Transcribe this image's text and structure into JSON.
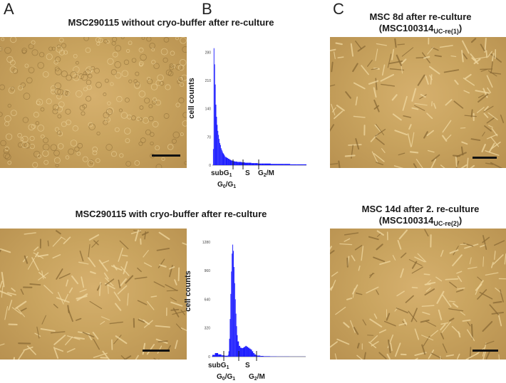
{
  "panels": {
    "a": "A",
    "b": "B",
    "c": "C"
  },
  "captions": {
    "top_left": "MSC290115 without cryo-buffer after re-culture",
    "bottom_left": "MSC290115 with cryo-buffer after re-culture",
    "top_right_line1": "MSC 8d after re-culture",
    "top_right_line2_prefix": "(MSC100314",
    "top_right_line2_sub": "UC-re(1)",
    "top_right_line2_suffix": ")",
    "bottom_right_line1": "MSC 14d after 2. re-culture",
    "bottom_right_line2_prefix": "(MSC100314",
    "bottom_right_line2_sub": "UC-re(2)",
    "bottom_right_line2_suffix": ")"
  },
  "histogram_labels": {
    "ylabel": "cell counts",
    "subg1": "subG",
    "subg1_sub": "1",
    "s": "S",
    "g0g1_a": "G",
    "g0g1_a_sub": "0",
    "g0g1_b": "/G",
    "g0g1_b_sub": "1",
    "g2m_a": "G",
    "g2m_a_sub": "2",
    "g2m_b": "/M"
  },
  "colors": {
    "histogram_fill": "#1a1aff",
    "photo_bg": "#c9a45f",
    "cell_light": "#f0d8a0",
    "cell_dark": "#8a6a35"
  },
  "chart_data": [
    {
      "type": "bar",
      "title": "",
      "ylabel": "cell counts",
      "yticks": [
        "0",
        "70",
        "140",
        "210",
        "280"
      ],
      "ylim": [
        0,
        300
      ],
      "x": [
        1,
        2,
        3,
        4,
        5,
        6,
        7,
        8,
        9,
        10,
        11,
        12,
        13,
        14,
        15,
        16,
        17,
        18,
        19,
        20,
        22,
        24,
        26,
        28,
        30,
        32,
        34,
        36,
        38,
        40,
        45,
        50,
        55,
        60,
        65,
        70,
        75,
        80,
        90,
        100,
        110,
        120,
        130,
        140
      ],
      "values": [
        40,
        290,
        250,
        200,
        150,
        120,
        100,
        85,
        75,
        65,
        55,
        50,
        42,
        38,
        34,
        30,
        28,
        25,
        22,
        20,
        18,
        16,
        14,
        12,
        11,
        10,
        9,
        9,
        8,
        8,
        7,
        6,
        6,
        5,
        5,
        4,
        4,
        4,
        3,
        3,
        3,
        2,
        2,
        2
      ],
      "markers": [
        "subG1",
        "G0/G1",
        "S",
        "G2/M"
      ]
    },
    {
      "type": "bar",
      "title": "",
      "ylabel": "cell counts",
      "yticks": [
        "0",
        "320",
        "640",
        "960",
        "1280"
      ],
      "ylim": [
        0,
        1350
      ],
      "x": [
        1,
        5,
        10,
        15,
        20,
        25,
        26,
        27,
        28,
        29,
        30,
        31,
        32,
        33,
        34,
        35,
        36,
        37,
        38,
        39,
        40,
        42,
        44,
        46,
        48,
        50,
        52,
        54,
        56,
        58,
        60,
        62,
        64,
        66,
        68,
        70,
        75,
        80,
        90,
        100,
        110,
        120,
        130,
        140
      ],
      "values": [
        20,
        40,
        25,
        15,
        10,
        20,
        60,
        200,
        420,
        700,
        950,
        1150,
        1250,
        1180,
        1000,
        820,
        640,
        480,
        340,
        240,
        170,
        120,
        100,
        95,
        100,
        110,
        120,
        110,
        100,
        90,
        80,
        60,
        40,
        25,
        18,
        12,
        8,
        5,
        3,
        2,
        2,
        1,
        1,
        1
      ],
      "markers": [
        "subG1",
        "G0/G1",
        "S",
        "G2/M"
      ]
    }
  ]
}
